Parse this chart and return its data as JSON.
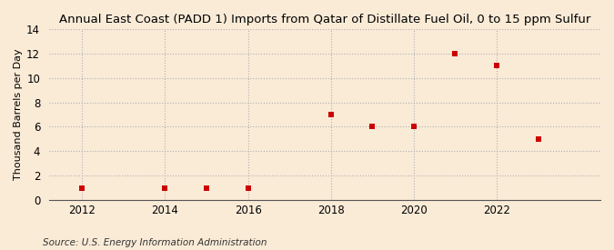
{
  "title": "Annual East Coast (PADD 1) Imports from Qatar of Distillate Fuel Oil, 0 to 15 ppm Sulfur",
  "ylabel": "Thousand Barrels per Day",
  "source": "Source: U.S. Energy Information Administration",
  "x_values": [
    2012,
    2014,
    2015,
    2016,
    2018,
    2019,
    2020,
    2021,
    2022,
    2023
  ],
  "y_values": [
    1,
    1,
    1,
    1,
    7,
    6,
    6,
    12,
    11,
    5
  ],
  "xlim": [
    2011.2,
    2024.5
  ],
  "ylim": [
    0,
    14
  ],
  "yticks": [
    0,
    2,
    4,
    6,
    8,
    10,
    12,
    14
  ],
  "xticks": [
    2012,
    2014,
    2016,
    2018,
    2020,
    2022
  ],
  "marker_color": "#cc0000",
  "marker": "s",
  "marker_size": 18,
  "background_color": "#faebd7",
  "grid_color": "#b0b0b0",
  "title_fontsize": 9.5,
  "label_fontsize": 8,
  "tick_fontsize": 8.5,
  "source_fontsize": 7.5
}
